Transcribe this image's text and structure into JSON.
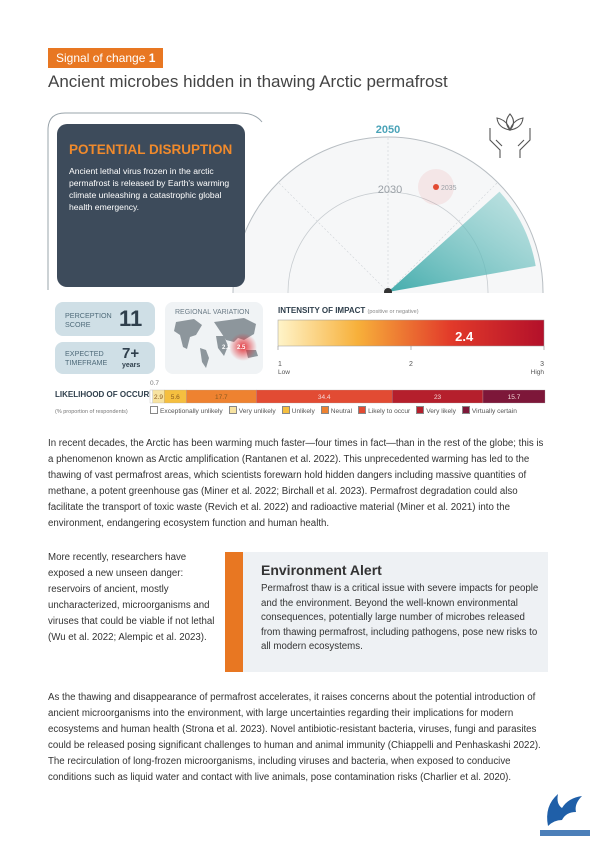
{
  "header": {
    "tag": "Signal of change",
    "tag_number": "1",
    "title": "Ancient microbes hidden in thawing Arctic permafrost"
  },
  "disruption": {
    "title": "POTENTIAL DISRUPTION",
    "text": "Ancient lethal virus frozen in the arctic permafrost is released by Earth's warming climate unleashing a catastrophic global health emergency."
  },
  "radar": {
    "outer_label": "2050",
    "inner_label": "2030",
    "point_label": "2035"
  },
  "perception": {
    "label": "PERCEPTION SCORE",
    "value": "11"
  },
  "timeframe": {
    "label": "EXPECTED TIMEFRAME",
    "value": "7+",
    "unit": "years"
  },
  "regional": {
    "title": "REGIONAL VARIATION",
    "points": [
      "2.1",
      "2.5"
    ]
  },
  "intensity": {
    "title": "INTENSITY OF IMPACT",
    "note": "(positive or negative)",
    "value": 2.4,
    "xlim": [
      1,
      3
    ],
    "xticks": [
      1,
      2,
      3
    ],
    "low": "Low",
    "high": "High"
  },
  "likelihood": {
    "title": "LIKELIHOOD OF OCCURRENCE",
    "subtitle": "(% proportion of respondents)",
    "segments": [
      {
        "name": "Exceptionally unlikely",
        "color": "#ffffff",
        "value": 0.7
      },
      {
        "name": "Very unlikely",
        "color": "#f7e3a1",
        "value": 2.9
      },
      {
        "name": "Unlikely",
        "color": "#f5bf3f",
        "value": 5.6
      },
      {
        "name": "Neutral",
        "color": "#ee8230",
        "value": 17.7
      },
      {
        "name": "Likely to occur",
        "color": "#e24b33",
        "value": 34.4
      },
      {
        "name": "Very likely",
        "color": "#b51f2c",
        "value": 23
      },
      {
        "name": "Virtually certain",
        "color": "#7d1739",
        "value": 15.7
      }
    ]
  },
  "body": {
    "paragraph_1": "In recent decades, the Arctic has been warming much faster—four times in fact—than in the rest of the globe; this is a phenomenon known as Arctic amplification (Rantanen et al. 2022). This unprecedented warming has led to the thawing of vast permafrost areas, which scientists forewarn hold hidden dangers including massive quantities of methane, a potent greenhouse gas (Miner et al. 2022; Birchall et al. 2023). Permafrost degradation could also facilitate the transport of toxic waste (Revich et al. 2022) and radioactive material (Miner et al. 2021) into the environment, endangering ecosystem function and human health.",
    "side_text": "More recently, researchers have exposed a new unseen danger: reservoirs of ancient, mostly uncharacterized, microorganisms and viruses that could be viable if not lethal (Wu et al. 2022; Alempic et al. 2023).",
    "paragraph_2": "As the thawing and disappearance of permafrost accelerates, it raises concerns about the potential introduction of ancient microorganisms into the environment, with large uncertainties regarding their implications for modern ecosystems and human health (Strona et al. 2023). Novel antibiotic-resistant bacteria, viruses, fungi and parasites could be released posing significant challenges to human and animal immunity (Chiappelli and Penhaskashi 2022). The recirculation of long-frozen microorganisms, including viruses and bacteria, when exposed to conducive conditions such as liquid water and contact with live animals, pose contamination risks (Charlier et al. 2020)."
  },
  "alert": {
    "title": "Environment Alert",
    "text": "Permafrost thaw is a critical issue with severe impacts for people and the environment. Beyond the well-known environmental consequences, potentially large number of microbes released from thawing permafrost, including pathogens, pose new risks to all modern ecosystems."
  }
}
